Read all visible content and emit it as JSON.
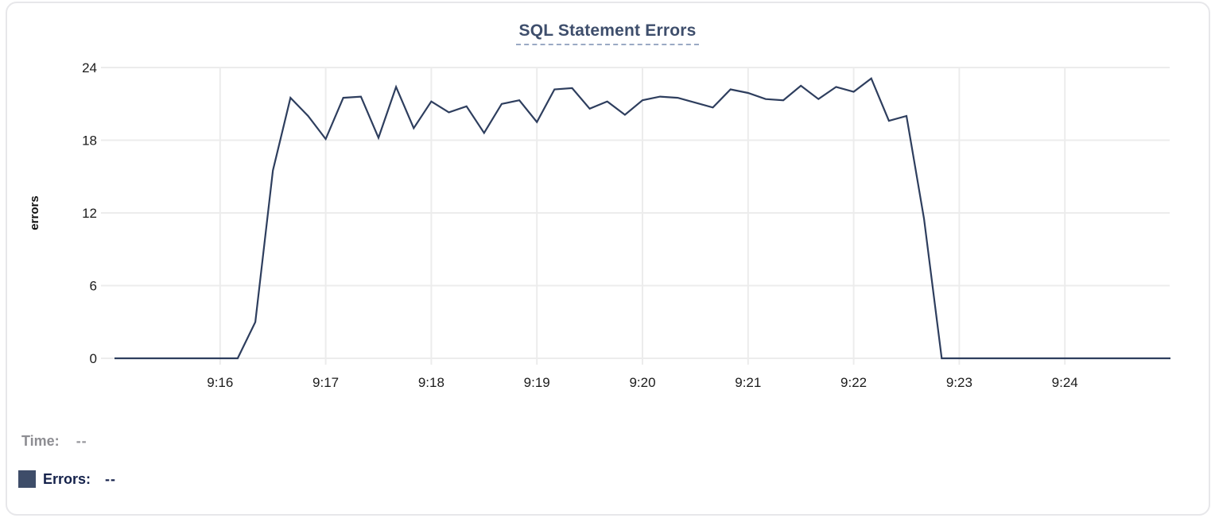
{
  "header": {
    "title": "SQL Statement Errors"
  },
  "legend": {
    "time_label": "Time:",
    "time_value": "--",
    "series_label": "Errors:",
    "series_value": "--"
  },
  "colors": {
    "line": "#2e3e5e",
    "legend_swatch": "#3e4d69",
    "title_text": "#3e4e6c",
    "title_underline": "#9aa9c4",
    "grid": "#ececec",
    "tick_text": "#1b1b1b",
    "axis_label_text": "#111111",
    "legend_muted": "#8d8d92",
    "legend_dark": "#15224b",
    "card_border": "#e7e7ea"
  },
  "chart_data": {
    "type": "line",
    "title": "SQL Statement Errors",
    "xlabel": "",
    "ylabel": "errors",
    "ylim": [
      0,
      24
    ],
    "y_ticks": [
      0,
      6,
      12,
      18,
      24
    ],
    "x_tick_labels": [
      "9:16",
      "9:17",
      "9:18",
      "9:19",
      "9:20",
      "9:21",
      "9:22",
      "9:23",
      "9:24"
    ],
    "grid": true,
    "legend_position": "bottom-left",
    "x": [
      "9:15:00",
      "9:15:10",
      "9:15:20",
      "9:15:30",
      "9:15:40",
      "9:15:50",
      "9:16:00",
      "9:16:10",
      "9:16:20",
      "9:16:30",
      "9:16:40",
      "9:16:50",
      "9:17:00",
      "9:17:10",
      "9:17:20",
      "9:17:30",
      "9:17:40",
      "9:17:50",
      "9:18:00",
      "9:18:10",
      "9:18:20",
      "9:18:30",
      "9:18:40",
      "9:18:50",
      "9:19:00",
      "9:19:10",
      "9:19:20",
      "9:19:30",
      "9:19:40",
      "9:19:50",
      "9:20:00",
      "9:20:10",
      "9:20:20",
      "9:20:30",
      "9:20:40",
      "9:20:50",
      "9:21:00",
      "9:21:10",
      "9:21:20",
      "9:21:30",
      "9:21:40",
      "9:21:50",
      "9:22:00",
      "9:22:10",
      "9:22:20",
      "9:22:30",
      "9:22:40",
      "9:22:50",
      "9:23:00",
      "9:23:10",
      "9:23:20",
      "9:23:30",
      "9:23:40",
      "9:23:50",
      "9:24:00",
      "9:24:10",
      "9:24:20",
      "9:24:30",
      "9:24:40",
      "9:24:50",
      "9:25:00"
    ],
    "series": [
      {
        "name": "Errors",
        "color": "#2e3e5e",
        "values": [
          0,
          0,
          0,
          0,
          0,
          0,
          0,
          0,
          3,
          15.5,
          21.5,
          20,
          18.1,
          21.5,
          21.6,
          18.2,
          22.4,
          19,
          21.2,
          20.3,
          20.8,
          18.6,
          21,
          21.3,
          19.5,
          22.2,
          22.3,
          20.6,
          21.2,
          20.1,
          21.3,
          21.6,
          21.5,
          21.1,
          20.7,
          22.2,
          21.9,
          21.4,
          21.3,
          22.5,
          21.4,
          22.4,
          22,
          23.1,
          19.6,
          20,
          11.5,
          0,
          0,
          0,
          0,
          0,
          0,
          0,
          0,
          0,
          0,
          0,
          0,
          0,
          0
        ]
      }
    ]
  }
}
